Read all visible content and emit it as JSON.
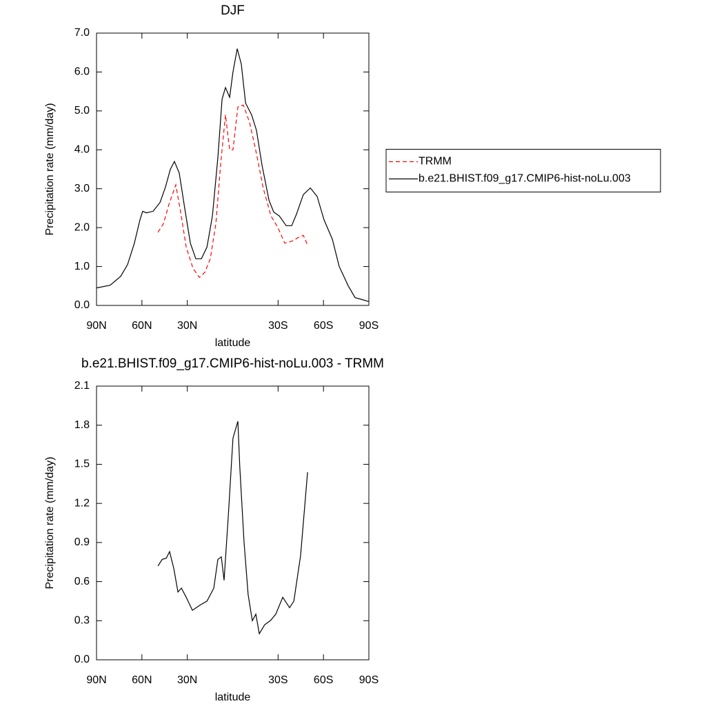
{
  "chart_data": [
    {
      "type": "line",
      "title": "DJF",
      "xlabel": "latitude",
      "ylabel": "Precipitation rate (mm/day)",
      "xlim": [
        90,
        -90
      ],
      "ylim": [
        0,
        7
      ],
      "xticks": [
        {
          "value": 90,
          "label": "90N"
        },
        {
          "value": 60,
          "label": "60N"
        },
        {
          "value": 30,
          "label": "30N"
        },
        {
          "value": -30,
          "label": "30S"
        },
        {
          "value": -60,
          "label": "60S"
        },
        {
          "value": -90,
          "label": "90S"
        }
      ],
      "yticks": [
        {
          "value": 0,
          "label": "0.0"
        },
        {
          "value": 1,
          "label": "1.0"
        },
        {
          "value": 2,
          "label": "2.0"
        },
        {
          "value": 3,
          "label": "3.0"
        },
        {
          "value": 4,
          "label": "4.0"
        },
        {
          "value": 5,
          "label": "5.0"
        },
        {
          "value": 6,
          "label": "6.0"
        },
        {
          "value": 7,
          "label": "7.0"
        }
      ],
      "legend": "right",
      "series": [
        {
          "name": "TRMM",
          "color": "#ff0000",
          "dash": true,
          "x": [
            49.4,
            45.8,
            42.1,
            37.6,
            34.4,
            30.7,
            26.2,
            22,
            18.4,
            14.8,
            11.1,
            8,
            4.8,
            2,
            -0.2,
            -3.4,
            -7,
            -11.2,
            -15.7,
            -20.3,
            -25.3,
            -29.9,
            -34.4,
            -39,
            -43.5,
            -46.7,
            -49.5
          ],
          "values": [
            1.88,
            2.1,
            2.6,
            3.1,
            2.4,
            1.5,
            0.95,
            0.72,
            0.85,
            1.2,
            2.1,
            3.6,
            4.9,
            4.0,
            4.0,
            5.1,
            5.15,
            4.7,
            3.9,
            3.0,
            2.3,
            2.0,
            1.6,
            1.65,
            1.75,
            1.8,
            1.55
          ]
        },
        {
          "name": "b.e21.BHIST.f09_g17.CMIP6-hist-noLu.003",
          "color": "#000000",
          "dash": false,
          "x": [
            90,
            81,
            74,
            69.5,
            65,
            61.3,
            59.5,
            57,
            52.6,
            48,
            44.4,
            41.2,
            38.5,
            35.3,
            31.7,
            28,
            24.4,
            20.7,
            17,
            13.4,
            9.8,
            7,
            4.8,
            2,
            -0.2,
            -3,
            -5.7,
            -8.5,
            -12.5,
            -15.7,
            -19.4,
            -24,
            -27.1,
            -30.8,
            -35.3,
            -39,
            -42.2,
            -46.7,
            -51.3,
            -55.8,
            -60.4,
            -65.9,
            -70.4,
            -76.4,
            -80.9,
            -85.5,
            -90
          ],
          "values": [
            0.45,
            0.52,
            0.75,
            1.05,
            1.6,
            2.2,
            2.42,
            2.38,
            2.42,
            2.65,
            3.05,
            3.5,
            3.7,
            3.4,
            2.5,
            1.6,
            1.2,
            1.2,
            1.5,
            2.3,
            3.8,
            5.3,
            5.6,
            5.35,
            6.0,
            6.6,
            6.2,
            5.2,
            4.9,
            4.5,
            3.6,
            2.7,
            2.4,
            2.3,
            2.05,
            2.05,
            2.35,
            2.85,
            3.02,
            2.8,
            2.2,
            1.7,
            1.0,
            0.5,
            0.2,
            0.15,
            0.1
          ]
        }
      ]
    },
    {
      "type": "line",
      "title": "b.e21.BHIST.f09_g17.CMIP6-hist-noLu.003 - TRMM",
      "xlabel": "latitude",
      "ylabel": "Precipitation rate (mm/day)",
      "xlim": [
        90,
        -90
      ],
      "ylim": [
        0,
        2.1
      ],
      "xticks": [
        {
          "value": 90,
          "label": "90N"
        },
        {
          "value": 60,
          "label": "60N"
        },
        {
          "value": 30,
          "label": "30N"
        },
        {
          "value": -30,
          "label": "30S"
        },
        {
          "value": -60,
          "label": "60S"
        },
        {
          "value": -90,
          "label": "90S"
        }
      ],
      "yticks": [
        {
          "value": 0,
          "label": "0.0"
        },
        0.3,
        0.6,
        0.9,
        1.2,
        1.5,
        1.8,
        2.1
      ],
      "series": [
        {
          "color": "#000000",
          "dash": false,
          "x": [
            49.4,
            46.6,
            43.9,
            41.7,
            38.9,
            36.2,
            33.9,
            30.7,
            26.6,
            21.6,
            17,
            12.5,
            9.8,
            7.5,
            5.7,
            2.9,
            -0.2,
            -3.4,
            -4.7,
            -7.5,
            -10.2,
            -13,
            -15.3,
            -17.6,
            -21.2,
            -24.9,
            -28.5,
            -33.1,
            -37.6,
            -40.4,
            -44.9,
            -49.5
          ],
          "values": [
            0.72,
            0.77,
            0.78,
            0.83,
            0.7,
            0.52,
            0.55,
            0.48,
            0.38,
            0.42,
            0.45,
            0.55,
            0.77,
            0.79,
            0.61,
            1.1,
            1.7,
            1.83,
            1.48,
            0.9,
            0.5,
            0.3,
            0.35,
            0.2,
            0.27,
            0.3,
            0.35,
            0.48,
            0.4,
            0.45,
            0.8,
            1.44
          ]
        }
      ]
    }
  ]
}
